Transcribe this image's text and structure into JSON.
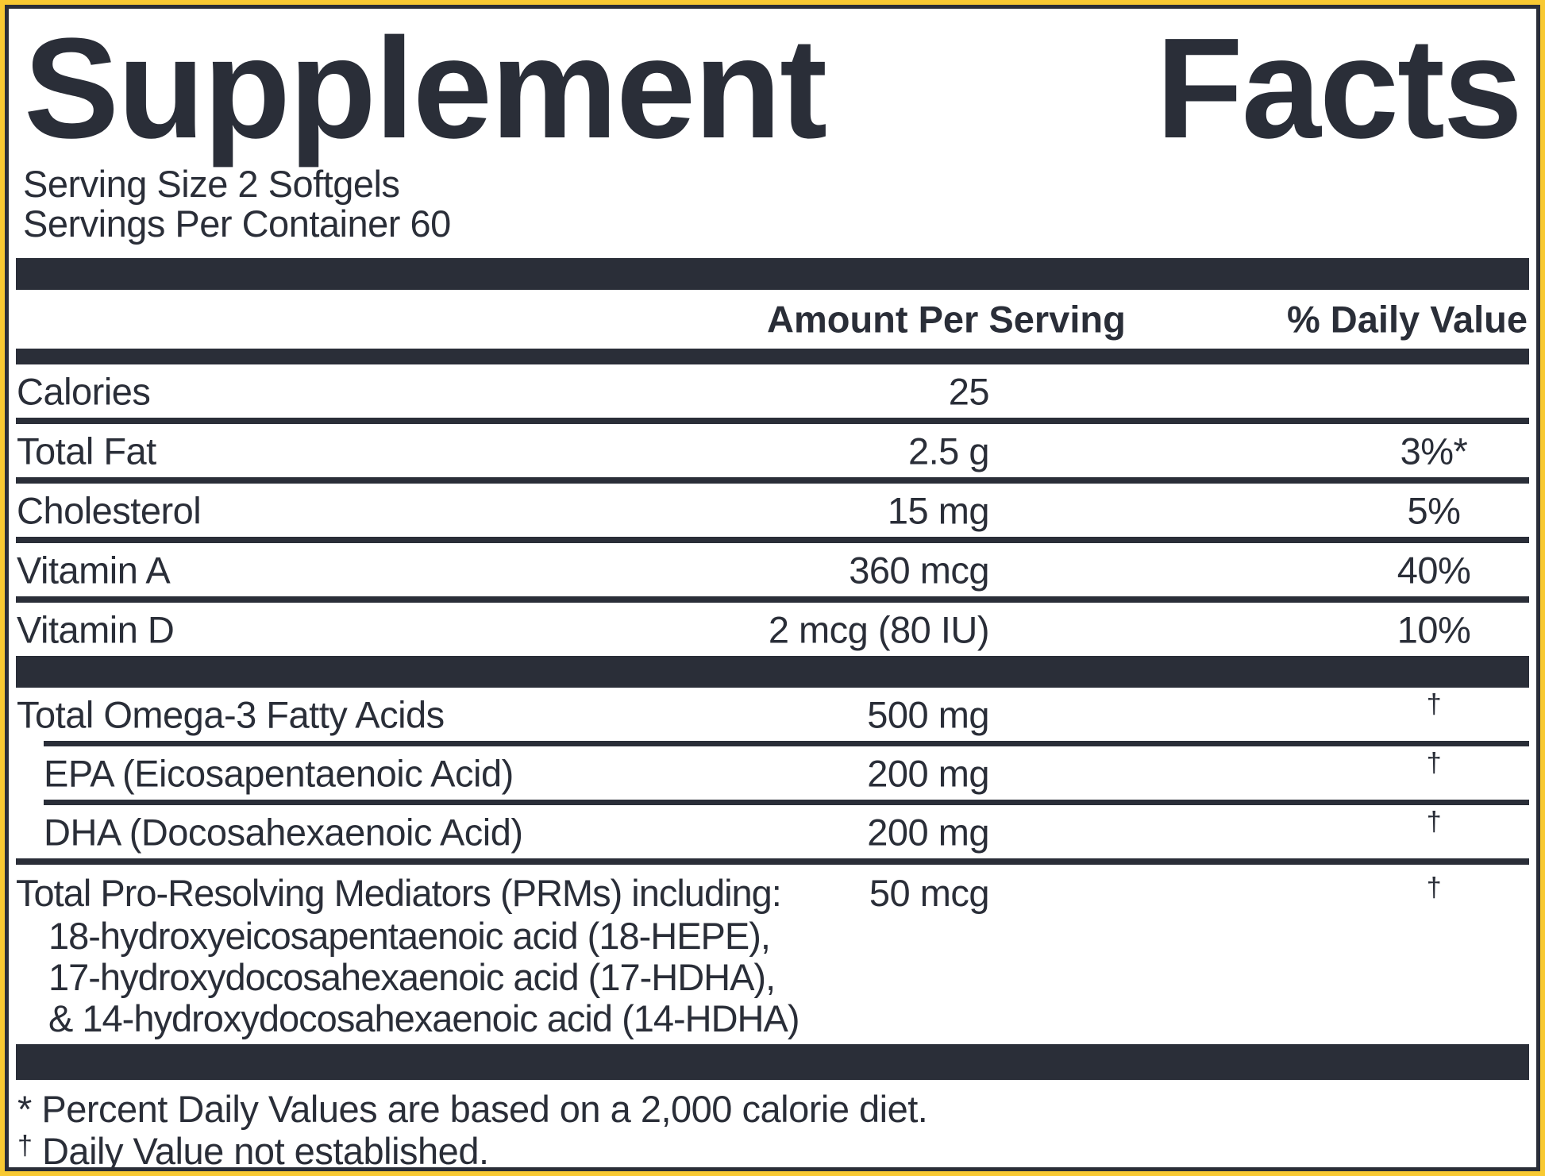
{
  "colors": {
    "ink": "#2A2E38",
    "border_yellow": "#F8C932",
    "background": "#FFFFFF"
  },
  "label": {
    "title": "Supplement Facts",
    "title_words": {
      "first": "Supplement",
      "second": "Facts"
    },
    "serving": {
      "size": "Serving Size 2 Softgels",
      "per_container": "Servings Per Container 60"
    },
    "columns": {
      "amount": "Amount Per Serving",
      "daily_value": "% Daily Value"
    },
    "rows": [
      {
        "name": "Calories",
        "amount": "25",
        "dv": ""
      },
      {
        "name": "Total Fat",
        "amount": "2.5 g",
        "dv": "3%*"
      },
      {
        "name": "Cholesterol",
        "amount": "15 mg",
        "dv": "5%"
      },
      {
        "name": "Vitamin A",
        "amount": "360 mcg",
        "dv": "40%"
      },
      {
        "name": "Vitamin D",
        "amount": "2 mcg (80 IU)",
        "dv": "10%"
      },
      {
        "name": "Total Omega-3 Fatty Acids",
        "amount": "500 mg",
        "dv": "†"
      },
      {
        "name": "EPA (Eicosapentaenoic Acid)",
        "amount": "200 mg",
        "dv": "†"
      },
      {
        "name": "DHA (Docosahexaenoic Acid)",
        "amount": "200 mg",
        "dv": "†"
      },
      {
        "name": "Total Pro-Resolving Mediators (PRMs) including:",
        "amount": "50 mcg",
        "dv": "†",
        "sublines": [
          "18-hydroxyeicosapentaenoic acid (18-HEPE),",
          "17-hydroxydocosahexaenoic acid (17-HDHA),",
          "& 14-hydroxydocosahexaenoic acid (14-HDHA)"
        ]
      }
    ],
    "footnotes": [
      {
        "marker": "*",
        "text": "Percent Daily Values are based on a 2,000 calorie diet."
      },
      {
        "marker": "†",
        "text": "Daily Value not established."
      }
    ]
  }
}
